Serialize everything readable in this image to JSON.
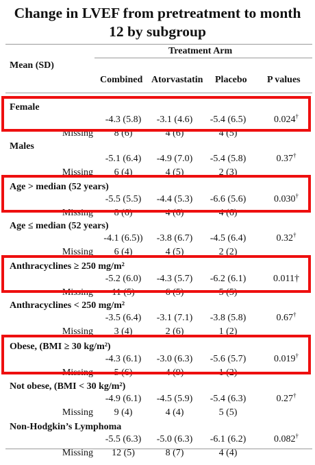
{
  "title_line1": "Change in LVEF from pretreatment to month",
  "title_line2": "12 by subgroup",
  "header": {
    "treatment_arm": "Treatment Arm",
    "mean_sd": "Mean (SD)",
    "columns": [
      "Combined",
      "Atorvastatin",
      "Placebo",
      "P values"
    ]
  },
  "missing_label": "Missing",
  "rows": [
    {
      "label": "Female",
      "values": [
        "-4.3 (5.8)",
        "-3.1 (4.6)",
        "-5.4 (6.5)"
      ],
      "p": "0.024",
      "mark": "†",
      "missing": [
        "8 (6)",
        "4 (6)",
        "4 (5)"
      ]
    },
    {
      "label": "Males",
      "values": [
        "-5.1 (6.4)",
        "-4.9 (7.0)",
        "-5.4 (5.8)"
      ],
      "p": "0.37",
      "mark": "†",
      "missing": [
        "6 (4)",
        "4 (5)",
        "2 (3)"
      ]
    },
    {
      "label": "Age > median (52 years)",
      "values": [
        "-5.5 (5.5)",
        "-4.4 (5.3)",
        "-6.6 (5.6)"
      ],
      "p": "0.030",
      "mark": "†",
      "missing": [
        "8 (6)",
        "4 (6)",
        "4 (6)"
      ]
    },
    {
      "label": "Age ≤ median (52 years)",
      "values": [
        "-4.1 (6.5))",
        "-3.8 (6.7)",
        "-4.5 (6.4)"
      ],
      "p": "0.32",
      "mark": "†",
      "missing": [
        "6 (4)",
        "4 (5)",
        "2 (2)"
      ]
    },
    {
      "label": "Anthracyclines ≥ 250 mg/m²",
      "values": [
        "-5.2 (6.0)",
        "-4.3 (5.7)",
        "-6.2 (6.1)"
      ],
      "p": "0.011†",
      "mark": "",
      "missing": [
        "11 (5)",
        "6 (5)",
        "5 (5)"
      ]
    },
    {
      "label": "Anthracyclines < 250 mg/m²",
      "values": [
        "-3.5 (6.4)",
        "-3.1 (7.1)",
        "-3.8 (5.8)"
      ],
      "p": "0.67",
      "mark": "†",
      "missing": [
        "3 (4)",
        "2 (6)",
        "1 (2)"
      ]
    },
    {
      "label": "Obese, (BMI ≥ 30 kg/m²)",
      "values": [
        "-4.3 (6.1)",
        "-3.0 (6.3)",
        "-5.6 (5.7)"
      ],
      "p": "0.019",
      "mark": "†",
      "missing": [
        "5 (6)",
        "4 (9)",
        "1 (2)"
      ]
    },
    {
      "label": "Not obese, (BMI < 30 kg/m²)",
      "values": [
        "-4.9 (6.1)",
        "-4.5 (5.9)",
        "-5.4 (6.3)"
      ],
      "p": "0.27",
      "mark": "†",
      "missing": [
        "9 (4)",
        "4 (4)",
        "5 (5)"
      ]
    },
    {
      "label": "Non-Hodgkin’s Lymphoma",
      "values": [
        "-5.5 (6.3)",
        "-5.0 (6.3)",
        "-6.1 (6.2)"
      ],
      "p": "0.082",
      "mark": "†",
      "missing": [
        "12 (5)",
        "8 (7)",
        "4 (4)"
      ]
    }
  ],
  "highlight_color": "#ee0f0f"
}
